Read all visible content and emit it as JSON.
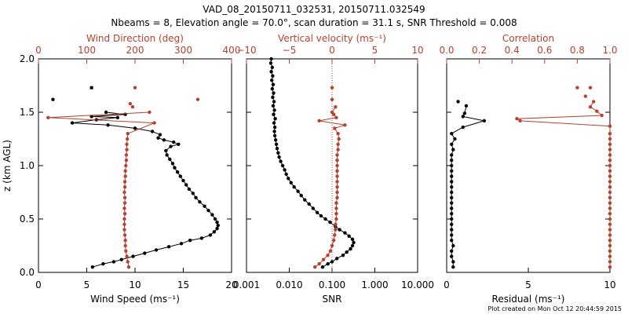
{
  "header": {
    "title_line1": "VAD_08_20150711_032531, 20150711.032549",
    "title_line2": "Nbeams = 8, Elevation angle = 70.0°, scan duration = 31.1 s, SNR Threshold = 0.008"
  },
  "footer": {
    "plot_created": "Plot created on Mon Oct 12 20:44:59 2015"
  },
  "colors": {
    "black_series": "#000000",
    "red_series": "#b7412e"
  },
  "chart_data": [
    {
      "type": "line",
      "ylabel": "z (km AGL)",
      "ylim": [
        0,
        2.0
      ],
      "yticks": [
        "0.0",
        "0.5",
        "1.0",
        "1.5",
        "2.0"
      ],
      "yticks_values": [
        0,
        0.5,
        1.0,
        1.5,
        2.0
      ],
      "xlabel_bottom": "Wind Speed (ms⁻¹)",
      "xlim_bottom": [
        0,
        20
      ],
      "xticks_bottom": [
        "0",
        "5",
        "10",
        "15",
        "20"
      ],
      "xlabel_top": "Wind Direction (deg)",
      "xlim_top": [
        0,
        400
      ],
      "xticks_top": [
        "0",
        "100",
        "200",
        "300",
        "400"
      ],
      "series": [
        {
          "axis": "bottom",
          "color": "#000000",
          "points": [
            [
              5.6,
              0.05
            ],
            [
              6.7,
              0.08
            ],
            [
              7.8,
              0.1
            ],
            [
              8.6,
              0.12
            ],
            [
              9.8,
              0.15
            ],
            [
              11.0,
              0.18
            ],
            [
              12.2,
              0.21
            ],
            [
              13.5,
              0.24
            ],
            [
              14.8,
              0.27
            ],
            [
              15.7,
              0.3
            ],
            [
              16.9,
              0.32
            ],
            [
              17.8,
              0.35
            ],
            [
              18.2,
              0.38
            ],
            [
              18.5,
              0.41
            ],
            [
              18.6,
              0.44
            ],
            [
              18.5,
              0.47
            ],
            [
              18.3,
              0.5
            ],
            [
              18.0,
              0.54
            ],
            [
              17.6,
              0.58
            ],
            [
              17.2,
              0.62
            ],
            [
              16.7,
              0.66
            ],
            [
              16.3,
              0.7
            ],
            [
              16.0,
              0.74
            ],
            [
              15.6,
              0.78
            ],
            [
              15.3,
              0.82
            ],
            [
              15.0,
              0.86
            ],
            [
              14.7,
              0.9
            ],
            [
              14.4,
              0.94
            ],
            [
              14.1,
              0.98
            ],
            [
              13.9,
              1.02
            ],
            [
              13.6,
              1.06
            ],
            [
              13.3,
              1.1
            ],
            [
              13.2,
              1.14
            ],
            [
              13.7,
              1.18
            ],
            [
              14.5,
              1.2
            ],
            [
              14.0,
              1.22
            ],
            [
              13.0,
              1.24
            ],
            [
              12.4,
              1.26
            ],
            [
              12.6,
              1.29
            ],
            [
              11.8,
              1.32
            ],
            [
              10.0,
              1.35
            ],
            [
              7.2,
              1.38
            ],
            [
              3.5,
              1.4
            ],
            [
              6.0,
              1.43
            ],
            [
              8.2,
              1.45
            ],
            [
              5.5,
              1.46
            ],
            [
              9.0,
              1.48
            ],
            [
              7.0,
              1.5
            ]
          ],
          "isolated": [
            [
              5.5,
              1.73
            ],
            [
              1.5,
              1.62
            ]
          ]
        },
        {
          "axis": "top",
          "color": "#b7412e",
          "points": [
            [
              187,
              0.05
            ],
            [
              185,
              0.1
            ],
            [
              183,
              0.15
            ],
            [
              181,
              0.2
            ],
            [
              180,
              0.25
            ],
            [
              180,
              0.3
            ],
            [
              179,
              0.35
            ],
            [
              178,
              0.4
            ],
            [
              178,
              0.45
            ],
            [
              178,
              0.5
            ],
            [
              179,
              0.55
            ],
            [
              178,
              0.6
            ],
            [
              179,
              0.65
            ],
            [
              179,
              0.7
            ],
            [
              178,
              0.75
            ],
            [
              179,
              0.8
            ],
            [
              179,
              0.85
            ],
            [
              180,
              0.9
            ],
            [
              180,
              0.95
            ],
            [
              181,
              1.0
            ],
            [
              182,
              1.05
            ],
            [
              182,
              1.1
            ],
            [
              183,
              1.15
            ],
            [
              183,
              1.2
            ],
            [
              184,
              1.25
            ],
            [
              185,
              1.3
            ],
            [
              240,
              1.4
            ],
            [
              20,
              1.45
            ],
            [
              230,
              1.5
            ]
          ],
          "isolated": [
            [
              200,
              1.73
            ],
            [
              330,
              1.62
            ],
            [
              190,
              1.58
            ],
            [
              195,
              1.55
            ]
          ]
        }
      ]
    },
    {
      "type": "line",
      "ylim": [
        0,
        2.0
      ],
      "xlabel_bottom": "SNR",
      "xscale_bottom": "log",
      "xlim_bottom": [
        0.001,
        10.0
      ],
      "xticks_bottom": [
        "0.001",
        "0.010",
        "0.100",
        "1.000",
        "10.000"
      ],
      "xlabel_top": "Vertical velocity (ms⁻¹)",
      "xlim_top": [
        -10,
        10
      ],
      "xticks_top": [
        "−10",
        "−5",
        "0",
        "5",
        "10"
      ],
      "zero_line_top": true,
      "series": [
        {
          "axis": "bottom",
          "color": "#000000",
          "points": [
            [
              0.06,
              0.05
            ],
            [
              0.08,
              0.08
            ],
            [
              0.1,
              0.1
            ],
            [
              0.13,
              0.13
            ],
            [
              0.18,
              0.16
            ],
            [
              0.22,
              0.19
            ],
            [
              0.27,
              0.22
            ],
            [
              0.3,
              0.25
            ],
            [
              0.32,
              0.28
            ],
            [
              0.3,
              0.31
            ],
            [
              0.25,
              0.34
            ],
            [
              0.2,
              0.37
            ],
            [
              0.15,
              0.4
            ],
            [
              0.12,
              0.43
            ],
            [
              0.09,
              0.47
            ],
            [
              0.07,
              0.5
            ],
            [
              0.055,
              0.53
            ],
            [
              0.045,
              0.56
            ],
            [
              0.036,
              0.6
            ],
            [
              0.029,
              0.64
            ],
            [
              0.023,
              0.68
            ],
            [
              0.019,
              0.72
            ],
            [
              0.016,
              0.76
            ],
            [
              0.013,
              0.8
            ],
            [
              0.011,
              0.84
            ],
            [
              0.0095,
              0.88
            ],
            [
              0.0085,
              0.92
            ],
            [
              0.0078,
              0.96
            ],
            [
              0.007,
              1.0
            ],
            [
              0.0063,
              1.04
            ],
            [
              0.0058,
              1.08
            ],
            [
              0.0055,
              1.12
            ],
            [
              0.0052,
              1.16
            ],
            [
              0.005,
              1.2
            ],
            [
              0.0048,
              1.24
            ],
            [
              0.0046,
              1.28
            ],
            [
              0.0045,
              1.32
            ],
            [
              0.0046,
              1.36
            ],
            [
              0.0044,
              1.4
            ],
            [
              0.0047,
              1.44
            ],
            [
              0.0043,
              1.48
            ],
            [
              0.0045,
              1.52
            ],
            [
              0.0042,
              1.56
            ],
            [
              0.0044,
              1.6
            ],
            [
              0.0041,
              1.64
            ],
            [
              0.0043,
              1.68
            ],
            [
              0.004,
              1.72
            ],
            [
              0.0042,
              1.76
            ],
            [
              0.0039,
              1.8
            ],
            [
              0.0041,
              1.84
            ],
            [
              0.0038,
              1.88
            ],
            [
              0.004,
              1.92
            ],
            [
              0.0037,
              1.96
            ],
            [
              0.0038,
              2.0
            ]
          ]
        },
        {
          "axis": "top",
          "color": "#b7412e",
          "points": [
            [
              -2.0,
              0.05
            ],
            [
              -1.5,
              0.08
            ],
            [
              -1.0,
              0.12
            ],
            [
              -0.5,
              0.16
            ],
            [
              -0.2,
              0.2
            ],
            [
              0.0,
              0.25
            ],
            [
              0.2,
              0.3
            ],
            [
              0.3,
              0.35
            ],
            [
              0.4,
              0.4
            ],
            [
              0.4,
              0.45
            ],
            [
              0.5,
              0.5
            ],
            [
              0.5,
              0.55
            ],
            [
              0.5,
              0.6
            ],
            [
              0.5,
              0.65
            ],
            [
              0.6,
              0.7
            ],
            [
              0.6,
              0.75
            ],
            [
              0.6,
              0.8
            ],
            [
              0.6,
              0.85
            ],
            [
              0.6,
              0.9
            ],
            [
              0.6,
              0.95
            ],
            [
              0.6,
              1.0
            ],
            [
              0.6,
              1.05
            ],
            [
              0.6,
              1.1
            ],
            [
              0.7,
              1.15
            ],
            [
              0.7,
              1.2
            ],
            [
              0.8,
              1.25
            ],
            [
              0.7,
              1.3
            ],
            [
              0.3,
              1.35
            ],
            [
              1.5,
              1.38
            ],
            [
              -1.5,
              1.42
            ],
            [
              0.5,
              1.45
            ],
            [
              0.2,
              1.48
            ],
            [
              0.0,
              1.5
            ],
            [
              0.4,
              1.55
            ]
          ],
          "isolated": [
            [
              0.0,
              1.73
            ],
            [
              0.0,
              1.62
            ]
          ]
        }
      ]
    },
    {
      "type": "line",
      "ylim": [
        0,
        2.0
      ],
      "xlabel_bottom": "Residual (ms⁻¹)",
      "xlim_bottom": [
        0,
        10
      ],
      "xticks_bottom": [
        "0",
        "5",
        "10"
      ],
      "xlabel_top": "Correlation",
      "xlim_top": [
        0,
        1.0
      ],
      "xticks_top": [
        "0.0",
        "0.2",
        "0.4",
        "0.6",
        "0.8",
        "1.0"
      ],
      "series": [
        {
          "axis": "bottom",
          "color": "#000000",
          "points": [
            [
              0.4,
              0.05
            ],
            [
              0.4,
              0.1
            ],
            [
              0.3,
              0.15
            ],
            [
              0.3,
              0.2
            ],
            [
              0.4,
              0.25
            ],
            [
              0.3,
              0.3
            ],
            [
              0.3,
              0.35
            ],
            [
              0.3,
              0.4
            ],
            [
              0.3,
              0.45
            ],
            [
              0.3,
              0.5
            ],
            [
              0.3,
              0.55
            ],
            [
              0.3,
              0.6
            ],
            [
              0.3,
              0.65
            ],
            [
              0.3,
              0.7
            ],
            [
              0.3,
              0.75
            ],
            [
              0.3,
              0.8
            ],
            [
              0.3,
              0.85
            ],
            [
              0.3,
              0.9
            ],
            [
              0.3,
              0.95
            ],
            [
              0.3,
              1.0
            ],
            [
              0.3,
              1.05
            ],
            [
              0.3,
              1.1
            ],
            [
              0.4,
              1.15
            ],
            [
              0.3,
              1.2
            ],
            [
              0.5,
              1.25
            ],
            [
              0.3,
              1.3
            ],
            [
              1.0,
              1.36
            ],
            [
              2.3,
              1.42
            ],
            [
              1.0,
              1.46
            ],
            [
              1.1,
              1.49
            ],
            [
              1.2,
              1.56
            ]
          ],
          "isolated": [
            [
              0.7,
              1.6
            ]
          ]
        },
        {
          "axis": "top",
          "color": "#b7412e",
          "points": [
            [
              1.0,
              0.05
            ],
            [
              1.0,
              0.1
            ],
            [
              1.0,
              0.15
            ],
            [
              1.0,
              0.2
            ],
            [
              1.0,
              0.25
            ],
            [
              1.0,
              0.3
            ],
            [
              1.0,
              0.35
            ],
            [
              1.0,
              0.4
            ],
            [
              1.0,
              0.45
            ],
            [
              1.0,
              0.5
            ],
            [
              1.0,
              0.55
            ],
            [
              1.0,
              0.6
            ],
            [
              1.0,
              0.65
            ],
            [
              1.0,
              0.7
            ],
            [
              1.0,
              0.75
            ],
            [
              1.0,
              0.8
            ],
            [
              1.0,
              0.85
            ],
            [
              1.0,
              0.9
            ],
            [
              1.0,
              0.95
            ],
            [
              1.0,
              1.0
            ],
            [
              1.0,
              1.05
            ],
            [
              1.0,
              1.1
            ],
            [
              1.0,
              1.15
            ],
            [
              1.0,
              1.2
            ],
            [
              1.0,
              1.25
            ],
            [
              1.0,
              1.3
            ],
            [
              1.0,
              1.37
            ],
            [
              0.45,
              1.42
            ],
            [
              0.43,
              1.44
            ],
            [
              0.95,
              1.47
            ],
            [
              0.92,
              1.51
            ],
            [
              0.88,
              1.55
            ],
            [
              0.9,
              1.6
            ]
          ],
          "isolated": [
            [
              0.8,
              1.73
            ],
            [
              0.88,
              1.73
            ],
            [
              0.85,
              1.65
            ]
          ]
        }
      ]
    }
  ]
}
